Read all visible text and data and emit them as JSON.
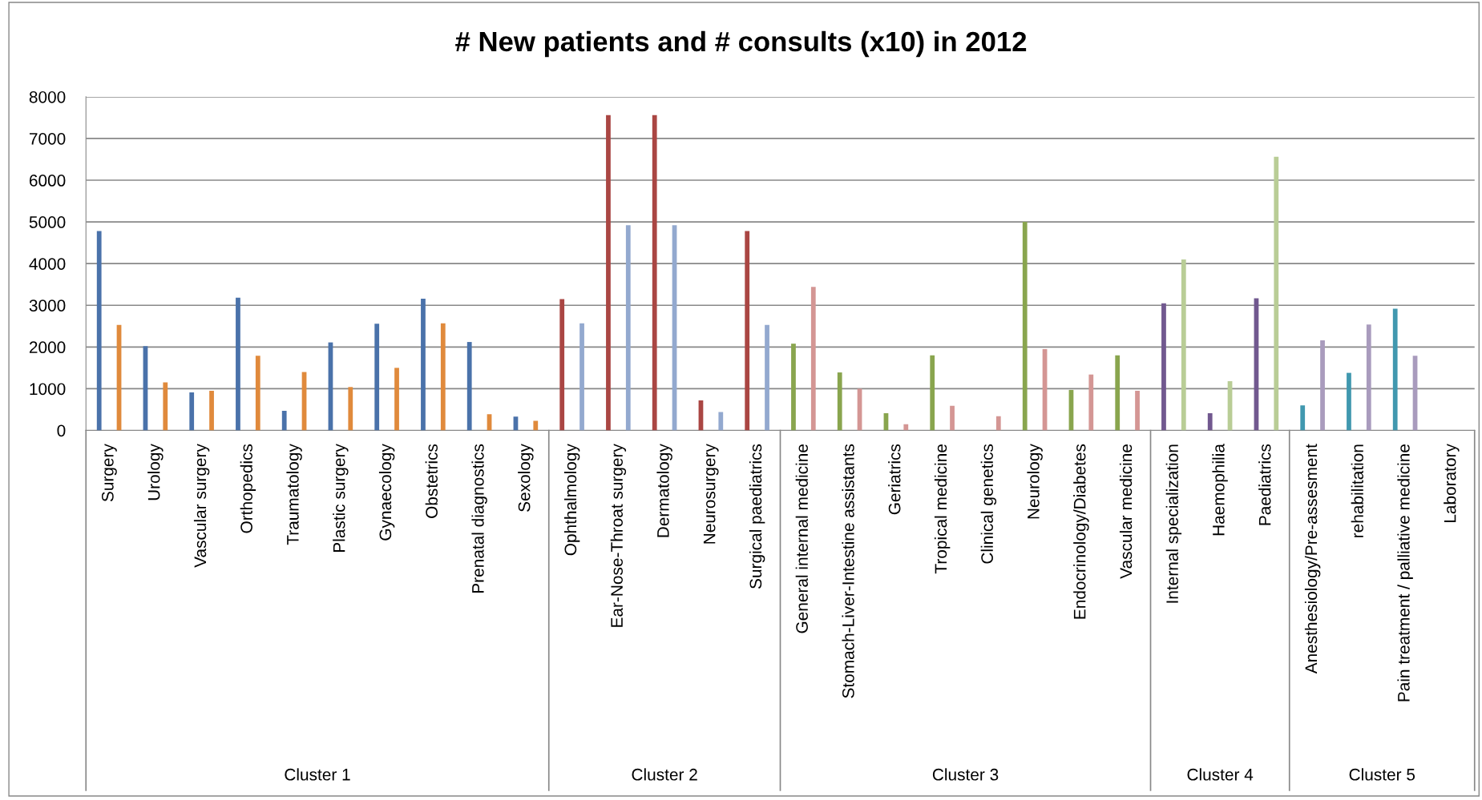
{
  "chart_data": {
    "type": "bar",
    "title": "# New patients and # consults (x10) in 2012",
    "categories": [
      "Surgery",
      "Urology",
      "Vascular surgery",
      "Orthopedics",
      "Traumatology",
      "Plastic surgery",
      "Gynaecology",
      "Obstetrics",
      "Prenatal diagnostics",
      "Sexology",
      "Ophthalmology",
      "Ear-Nose-Throat surgery",
      "Dermatology",
      "Neurosurgery",
      "Surgical paediatrics",
      "General internal medicine",
      "Stomach-Liver-Intestine assistants",
      "Geriatrics",
      "Tropical medicine",
      "Clinical genetics",
      "Neurology",
      "Endocrinology/Diabetes",
      "Vascular medicine",
      "Internal specialization",
      "Haemophilia",
      "Paediatrics",
      "Anesthesiology/Pre-assesment",
      "rehabilitation",
      "Pain treatment / palliative medicine",
      "Laboratory"
    ],
    "series": [
      {
        "values": [
          4780,
          2020,
          910,
          3180,
          470,
          2110,
          2560,
          3160,
          2120,
          330,
          3150,
          7560,
          7560,
          720,
          4780,
          2080,
          1390,
          410,
          1800,
          0,
          5000,
          970,
          1800,
          3050,
          410,
          3170,
          600,
          1380,
          2920,
          0
        ],
        "colors": [
          "#4a72aa",
          "#4a72aa",
          "#4a72aa",
          "#4a72aa",
          "#4a72aa",
          "#4a72aa",
          "#4a72aa",
          "#4a72aa",
          "#4a72aa",
          "#4a72aa",
          "#aa4643",
          "#aa4643",
          "#aa4643",
          "#aa4643",
          "#aa4643",
          "#89a54e",
          "#89a54e",
          "#89a54e",
          "#89a54e",
          "#89a54e",
          "#89a54e",
          "#89a54e",
          "#89a54e",
          "#71588f",
          "#71588f",
          "#71588f",
          "#4198af",
          "#4198af",
          "#4198af",
          "#4198af"
        ]
      },
      {
        "values": [
          2530,
          1150,
          950,
          1790,
          1400,
          1040,
          1500,
          2570,
          390,
          230,
          2570,
          4920,
          4920,
          440,
          2530,
          3440,
          1000,
          150,
          590,
          340,
          1950,
          1340,
          950,
          4100,
          1180,
          6560,
          2160,
          2540,
          1790,
          0
        ],
        "colors": [
          "#e08a3c",
          "#e08a3c",
          "#e08a3c",
          "#e08a3c",
          "#e08a3c",
          "#e08a3c",
          "#e08a3c",
          "#e08a3c",
          "#e08a3c",
          "#e08a3c",
          "#93a9cf",
          "#93a9cf",
          "#93a9cf",
          "#93a9cf",
          "#93a9cf",
          "#d49694",
          "#d49694",
          "#d49694",
          "#d49694",
          "#d49694",
          "#d49694",
          "#d49694",
          "#d49694",
          "#b9cd96",
          "#b9cd96",
          "#b9cd96",
          "#a99bbd",
          "#a99bbd",
          "#a99bbd",
          "#a99bbd"
        ]
      }
    ],
    "annotations": [
      "Cluster 1",
      "Cluster 2",
      "Cluster 3",
      "Cluster 4",
      "Cluster 5"
    ],
    "ylim": [
      0,
      8000
    ],
    "yticks": [
      0,
      1000,
      2000,
      3000,
      4000,
      5000,
      6000,
      7000,
      8000
    ],
    "grid": "y",
    "legend": false
  }
}
